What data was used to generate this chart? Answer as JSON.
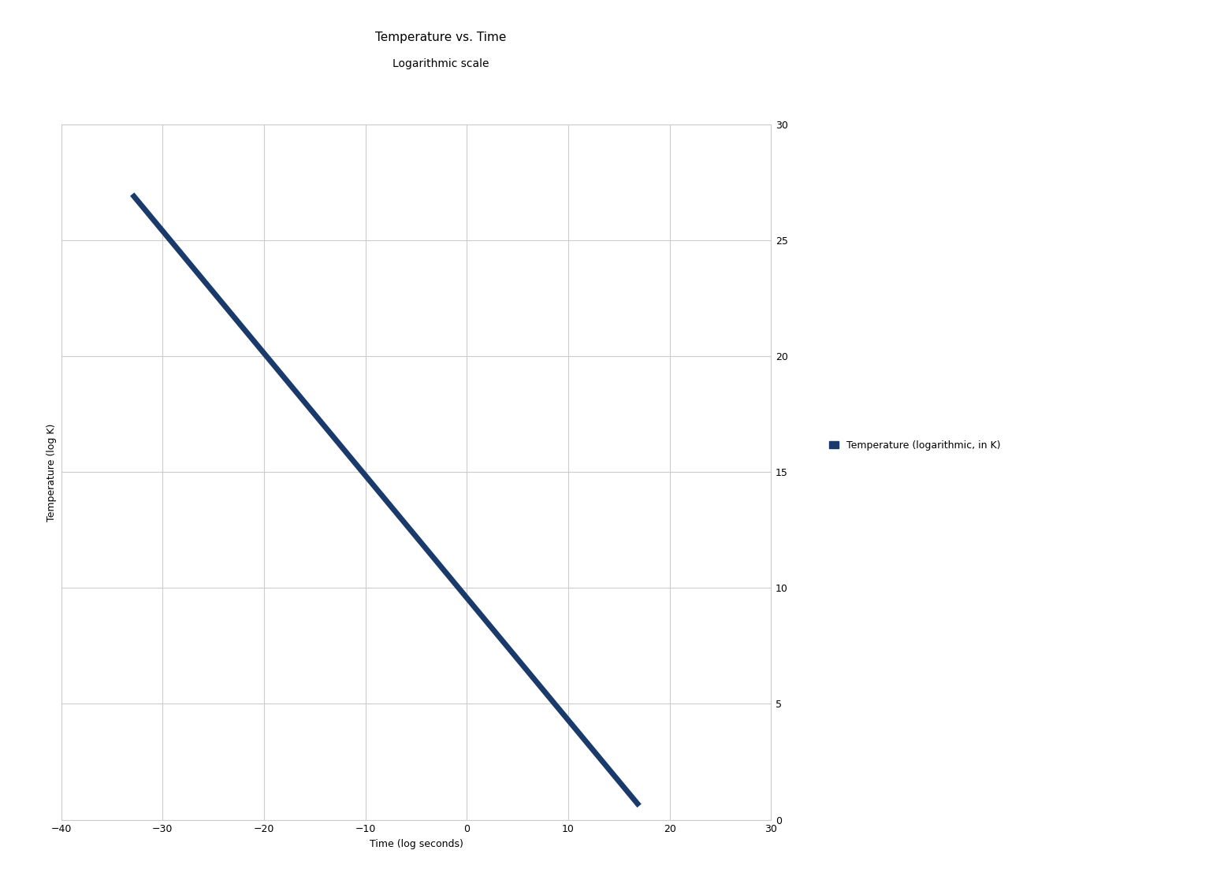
{
  "title": "Temperature vs. Time",
  "subtitle": "Logarithmic scale",
  "xlabel": "Time (log seconds)",
  "ylabel": "Temperature (log K)",
  "xlim": [
    -40,
    30
  ],
  "ylim": [
    0,
    30
  ],
  "xticks": [
    -40,
    -30,
    -20,
    -10,
    0,
    10,
    20,
    30
  ],
  "yticks": [
    0,
    5,
    10,
    15,
    20,
    25,
    30
  ],
  "x_data": [
    -33,
    17
  ],
  "y_data": [
    27.0,
    0.6
  ],
  "line_color": "#1a3a6b",
  "line_width": 5,
  "legend_label": "Temperature (logarithmic, in K)",
  "legend_marker_color": "#1a3a6b",
  "background_color": "#ffffff",
  "grid_color": "#cccccc",
  "title_fontsize": 11,
  "subtitle_fontsize": 10,
  "label_fontsize": 9,
  "tick_fontsize": 9,
  "legend_fontsize": 9
}
